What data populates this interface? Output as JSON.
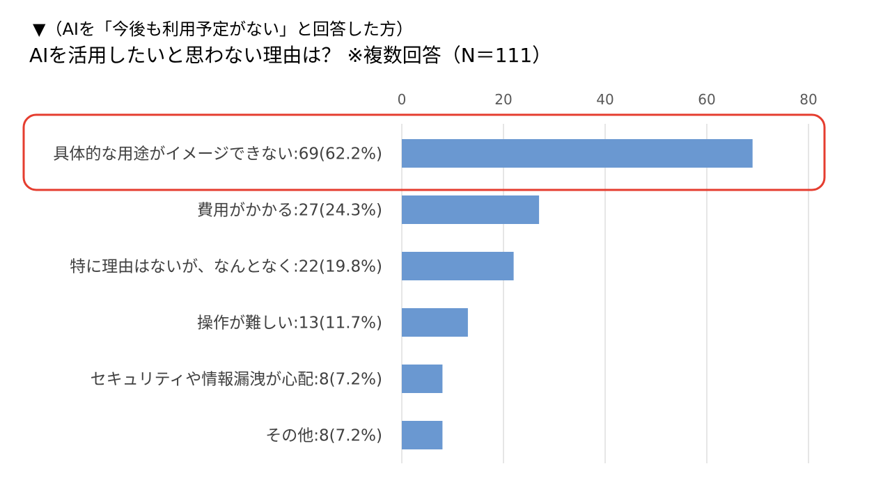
{
  "header": {
    "subtitle": "▼（AIを「今後も利用予定がない」と回答した方）",
    "title": "AIを活用したいと思わない理由は？ ※複数回答（N＝111）"
  },
  "chart_data": {
    "type": "bar",
    "orientation": "horizontal",
    "categories": [
      "具体的な用途がイメージできない:69(62.2%)",
      "費用がかかる:27(24.3%)",
      "特に理由はないが、なんとなく:22(19.8%)",
      "操作が難しい:13(11.7%)",
      "セキュリティや情報漏洩が心配:8(7.2%)",
      "その他:8(7.2%)"
    ],
    "values": [
      69,
      27,
      22,
      13,
      8,
      8
    ],
    "xlim": [
      0,
      80
    ],
    "xticks": [
      0,
      20,
      40,
      60,
      80
    ],
    "x_axis_position": "top",
    "grid": true,
    "legend": "none",
    "highlight_index": 0,
    "colors": {
      "bar": "#6a98d1",
      "grid": "#d9d9d9",
      "highlight": "#e53d2f"
    }
  }
}
